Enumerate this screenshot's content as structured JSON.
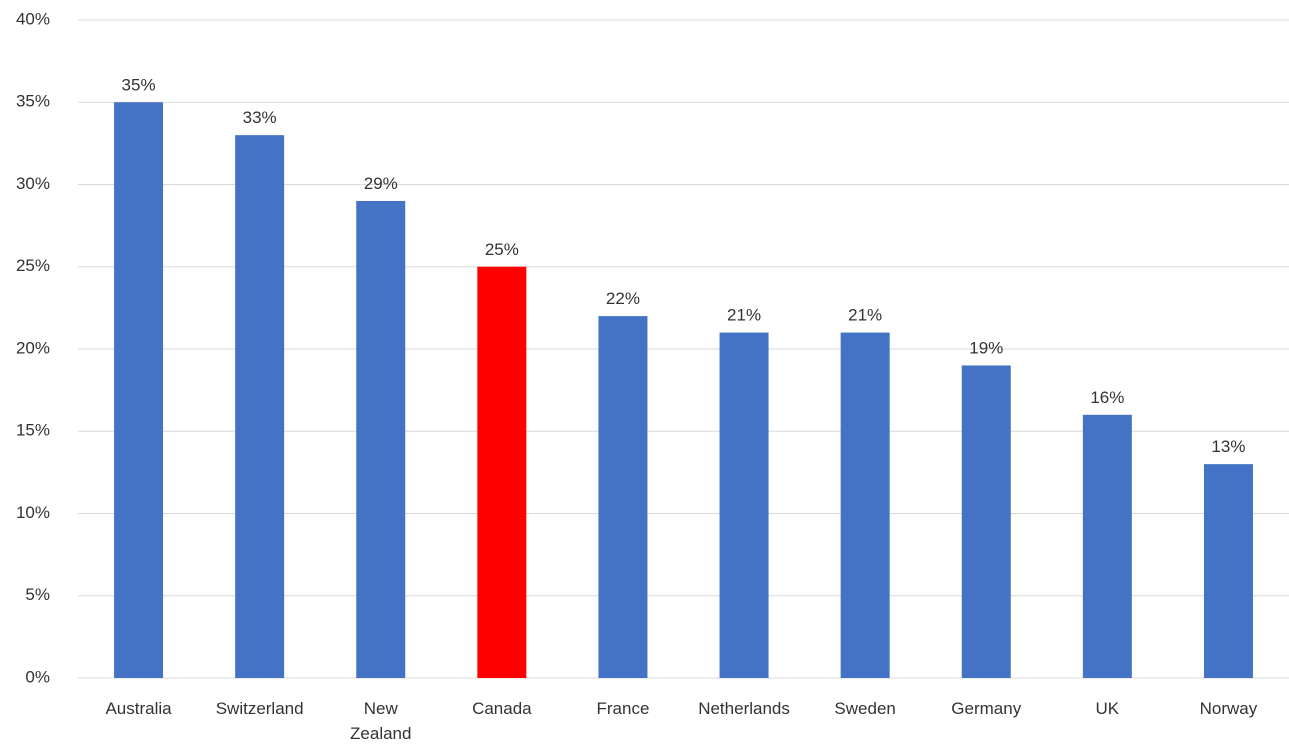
{
  "chart_data": {
    "type": "bar",
    "categories": [
      "Australia",
      "Switzerland",
      "New Zealand",
      "Canada",
      "France",
      "Netherlands",
      "Sweden",
      "Germany",
      "UK",
      "Norway"
    ],
    "category_lines": [
      [
        "Australia"
      ],
      [
        "Switzerland"
      ],
      [
        "New",
        "Zealand"
      ],
      [
        "Canada"
      ],
      [
        "France"
      ],
      [
        "Netherlands"
      ],
      [
        "Sweden"
      ],
      [
        "Germany"
      ],
      [
        "UK"
      ],
      [
        "Norway"
      ]
    ],
    "values": [
      35,
      33,
      29,
      25,
      22,
      21,
      21,
      19,
      16,
      13
    ],
    "data_labels": [
      "35%",
      "33%",
      "29%",
      "25%",
      "22%",
      "21%",
      "21%",
      "19%",
      "16%",
      "13%"
    ],
    "yticks": [
      0,
      5,
      10,
      15,
      20,
      25,
      30,
      35,
      40
    ],
    "ytick_labels": [
      "0%",
      "5%",
      "10%",
      "15%",
      "20%",
      "25%",
      "30%",
      "35%",
      "40%"
    ],
    "ylim": [
      0,
      40
    ],
    "title": "",
    "xlabel": "",
    "ylabel": "",
    "grid": true,
    "legend": "none",
    "colors": {
      "default_bar": "#4472C4",
      "highlight_bar": "#FF0000",
      "highlight_category": "Canada",
      "gridline": "#D9D9D9",
      "text": "#333333"
    }
  }
}
